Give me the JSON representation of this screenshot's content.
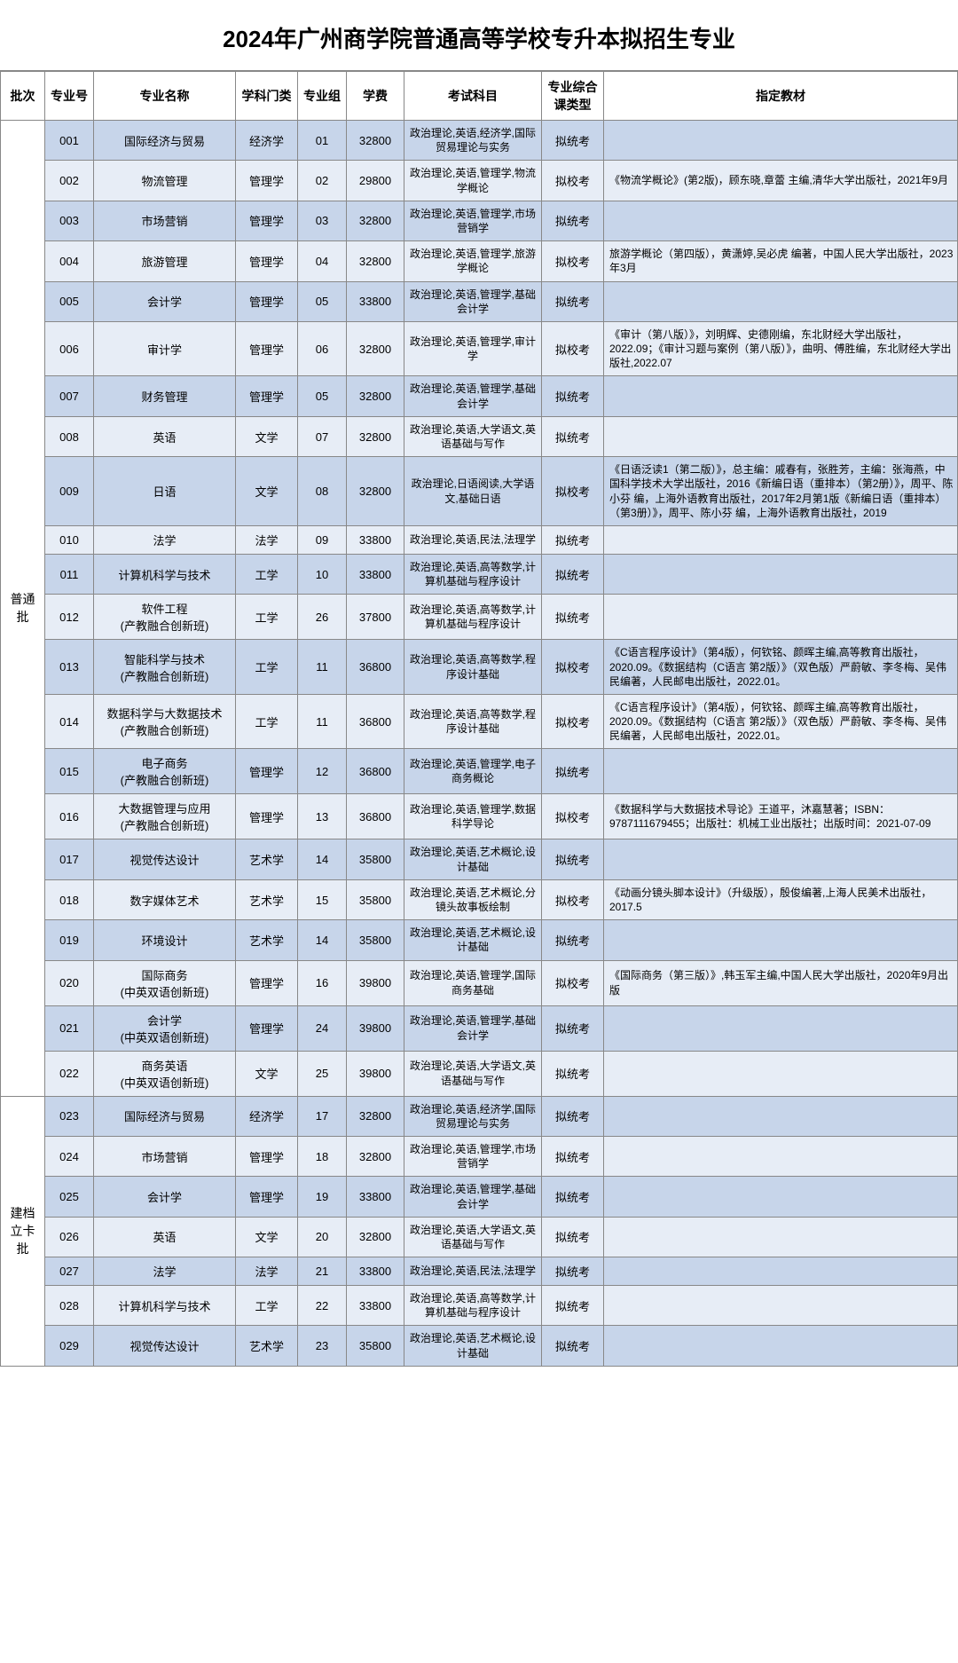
{
  "title": "2024年广州商学院普通高等学校专升本拟招生专业",
  "headers": {
    "batch": "批次",
    "code": "专业号",
    "name": "专业名称",
    "category": "学科门类",
    "group": "专业组",
    "fee": "学费",
    "exam": "考试科目",
    "examType": "专业综合课类型",
    "textbook": "指定教材"
  },
  "batches": [
    {
      "batchLabel": "普通批",
      "rows": [
        {
          "code": "001",
          "name": "国际经济与贸易",
          "cat": "经济学",
          "group": "01",
          "fee": "32800",
          "exam": "政治理论,英语,经济学,国际贸易理论与实务",
          "type": "拟统考",
          "book": ""
        },
        {
          "code": "002",
          "name": "物流管理",
          "cat": "管理学",
          "group": "02",
          "fee": "29800",
          "exam": "政治理论,英语,管理学,物流学概论",
          "type": "拟校考",
          "book": "《物流学概论》(第2版)，顾东晓,章蕾 主编,清华大学出版社，2021年9月"
        },
        {
          "code": "003",
          "name": "市场营销",
          "cat": "管理学",
          "group": "03",
          "fee": "32800",
          "exam": "政治理论,英语,管理学,市场营销学",
          "type": "拟统考",
          "book": ""
        },
        {
          "code": "004",
          "name": "旅游管理",
          "cat": "管理学",
          "group": "04",
          "fee": "32800",
          "exam": "政治理论,英语,管理学,旅游学概论",
          "type": "拟校考",
          "book": "旅游学概论（第四版），黄潇婷,吴必虎 编著，中国人民大学出版社，2023年3月"
        },
        {
          "code": "005",
          "name": "会计学",
          "cat": "管理学",
          "group": "05",
          "fee": "33800",
          "exam": "政治理论,英语,管理学,基础会计学",
          "type": "拟统考",
          "book": ""
        },
        {
          "code": "006",
          "name": "审计学",
          "cat": "管理学",
          "group": "06",
          "fee": "32800",
          "exam": "政治理论,英语,管理学,审计学",
          "type": "拟校考",
          "book": "《审计（第八版）》，刘明辉、史德刚编，东北财经大学出版社，2022.09；《审计习题与案例（第八版）》，曲明、傅胜编，东北财经大学出版社,2022.07"
        },
        {
          "code": "007",
          "name": "财务管理",
          "cat": "管理学",
          "group": "05",
          "fee": "32800",
          "exam": "政治理论,英语,管理学,基础会计学",
          "type": "拟统考",
          "book": ""
        },
        {
          "code": "008",
          "name": "英语",
          "cat": "文学",
          "group": "07",
          "fee": "32800",
          "exam": "政治理论,英语,大学语文,英语基础与写作",
          "type": "拟统考",
          "book": ""
        },
        {
          "code": "009",
          "name": "日语",
          "cat": "文学",
          "group": "08",
          "fee": "32800",
          "exam": "政治理论,日语阅读,大学语文,基础日语",
          "type": "拟校考",
          "book": "《日语泛读1（第二版）》，总主编：戚春有，张胜芳，主编：张海燕，中国科学技术大学出版社，2016《新编日语（重排本）（第2册）》，周平、陈小芬 编，上海外语教育出版社，2017年2月第1版《新编日语（重排本）（第3册）》，周平、陈小芬 编，上海外语教育出版社，2019"
        },
        {
          "code": "010",
          "name": "法学",
          "cat": "法学",
          "group": "09",
          "fee": "33800",
          "exam": "政治理论,英语,民法,法理学",
          "type": "拟统考",
          "book": ""
        },
        {
          "code": "011",
          "name": "计算机科学与技术",
          "cat": "工学",
          "group": "10",
          "fee": "33800",
          "exam": "政治理论,英语,高等数学,计算机基础与程序设计",
          "type": "拟统考",
          "book": ""
        },
        {
          "code": "012",
          "name": "软件工程\n(产教融合创新班)",
          "cat": "工学",
          "group": "26",
          "fee": "37800",
          "exam": "政治理论,英语,高等数学,计算机基础与程序设计",
          "type": "拟统考",
          "book": ""
        },
        {
          "code": "013",
          "name": "智能科学与技术\n(产教融合创新班)",
          "cat": "工学",
          "group": "11",
          "fee": "36800",
          "exam": "政治理论,英语,高等数学,程序设计基础",
          "type": "拟校考",
          "book": "《C语言程序设计》（第4版），何钦铭、颜晖主编,高等教育出版社，2020.09。《数据结构（C语言 第2版）》（双色版）严蔚敏、李冬梅、吴伟民编著，人民邮电出版社，2022.01。"
        },
        {
          "code": "014",
          "name": "数据科学与大数据技术\n(产教融合创新班)",
          "cat": "工学",
          "group": "11",
          "fee": "36800",
          "exam": "政治理论,英语,高等数学,程序设计基础",
          "type": "拟校考",
          "book": "《C语言程序设计》（第4版），何钦铭、颜晖主编,高等教育出版社，2020.09。《数据结构（C语言 第2版）》（双色版）严蔚敏、李冬梅、吴伟民编著，人民邮电出版社，2022.01。"
        },
        {
          "code": "015",
          "name": "电子商务\n(产教融合创新班)",
          "cat": "管理学",
          "group": "12",
          "fee": "36800",
          "exam": "政治理论,英语,管理学,电子商务概论",
          "type": "拟统考",
          "book": ""
        },
        {
          "code": "016",
          "name": "大数据管理与应用\n(产教融合创新班)",
          "cat": "管理学",
          "group": "13",
          "fee": "36800",
          "exam": "政治理论,英语,管理学,数据科学导论",
          "type": "拟校考",
          "book": "《数据科学与大数据技术导论》王道平，沐嘉慧著；ISBN：9787111679455；出版社：机械工业出版社；出版时间：2021-07-09"
        },
        {
          "code": "017",
          "name": "视觉传达设计",
          "cat": "艺术学",
          "group": "14",
          "fee": "35800",
          "exam": "政治理论,英语,艺术概论,设计基础",
          "type": "拟统考",
          "book": ""
        },
        {
          "code": "018",
          "name": "数字媒体艺术",
          "cat": "艺术学",
          "group": "15",
          "fee": "35800",
          "exam": "政治理论,英语,艺术概论,分镜头故事板绘制",
          "type": "拟校考",
          "book": "《动画分镜头脚本设计》（升级版），殷俊编著,上海人民美术出版社，2017.5"
        },
        {
          "code": "019",
          "name": "环境设计",
          "cat": "艺术学",
          "group": "14",
          "fee": "35800",
          "exam": "政治理论,英语,艺术概论,设计基础",
          "type": "拟统考",
          "book": ""
        },
        {
          "code": "020",
          "name": "国际商务\n(中英双语创新班)",
          "cat": "管理学",
          "group": "16",
          "fee": "39800",
          "exam": "政治理论,英语,管理学,国际商务基础",
          "type": "拟校考",
          "book": "《国际商务（第三版）》,韩玉军主编,中国人民大学出版社，2020年9月出版"
        },
        {
          "code": "021",
          "name": "会计学\n(中英双语创新班)",
          "cat": "管理学",
          "group": "24",
          "fee": "39800",
          "exam": "政治理论,英语,管理学,基础会计学",
          "type": "拟统考",
          "book": ""
        },
        {
          "code": "022",
          "name": "商务英语\n(中英双语创新班)",
          "cat": "文学",
          "group": "25",
          "fee": "39800",
          "exam": "政治理论,英语,大学语文,英语基础与写作",
          "type": "拟统考",
          "book": ""
        }
      ]
    },
    {
      "batchLabel": "建档立卡批",
      "rows": [
        {
          "code": "023",
          "name": "国际经济与贸易",
          "cat": "经济学",
          "group": "17",
          "fee": "32800",
          "exam": "政治理论,英语,经济学,国际贸易理论与实务",
          "type": "拟统考",
          "book": ""
        },
        {
          "code": "024",
          "name": "市场营销",
          "cat": "管理学",
          "group": "18",
          "fee": "32800",
          "exam": "政治理论,英语,管理学,市场营销学",
          "type": "拟统考",
          "book": ""
        },
        {
          "code": "025",
          "name": "会计学",
          "cat": "管理学",
          "group": "19",
          "fee": "33800",
          "exam": "政治理论,英语,管理学,基础会计学",
          "type": "拟统考",
          "book": ""
        },
        {
          "code": "026",
          "name": "英语",
          "cat": "文学",
          "group": "20",
          "fee": "32800",
          "exam": "政治理论,英语,大学语文,英语基础与写作",
          "type": "拟统考",
          "book": ""
        },
        {
          "code": "027",
          "name": "法学",
          "cat": "法学",
          "group": "21",
          "fee": "33800",
          "exam": "政治理论,英语,民法,法理学",
          "type": "拟统考",
          "book": ""
        },
        {
          "code": "028",
          "name": "计算机科学与技术",
          "cat": "工学",
          "group": "22",
          "fee": "33800",
          "exam": "政治理论,英语,高等数学,计算机基础与程序设计",
          "type": "拟统考",
          "book": ""
        },
        {
          "code": "029",
          "name": "视觉传达设计",
          "cat": "艺术学",
          "group": "23",
          "fee": "35800",
          "exam": "政治理论,英语,艺术概论,设计基础",
          "type": "拟统考",
          "book": ""
        }
      ]
    }
  ]
}
